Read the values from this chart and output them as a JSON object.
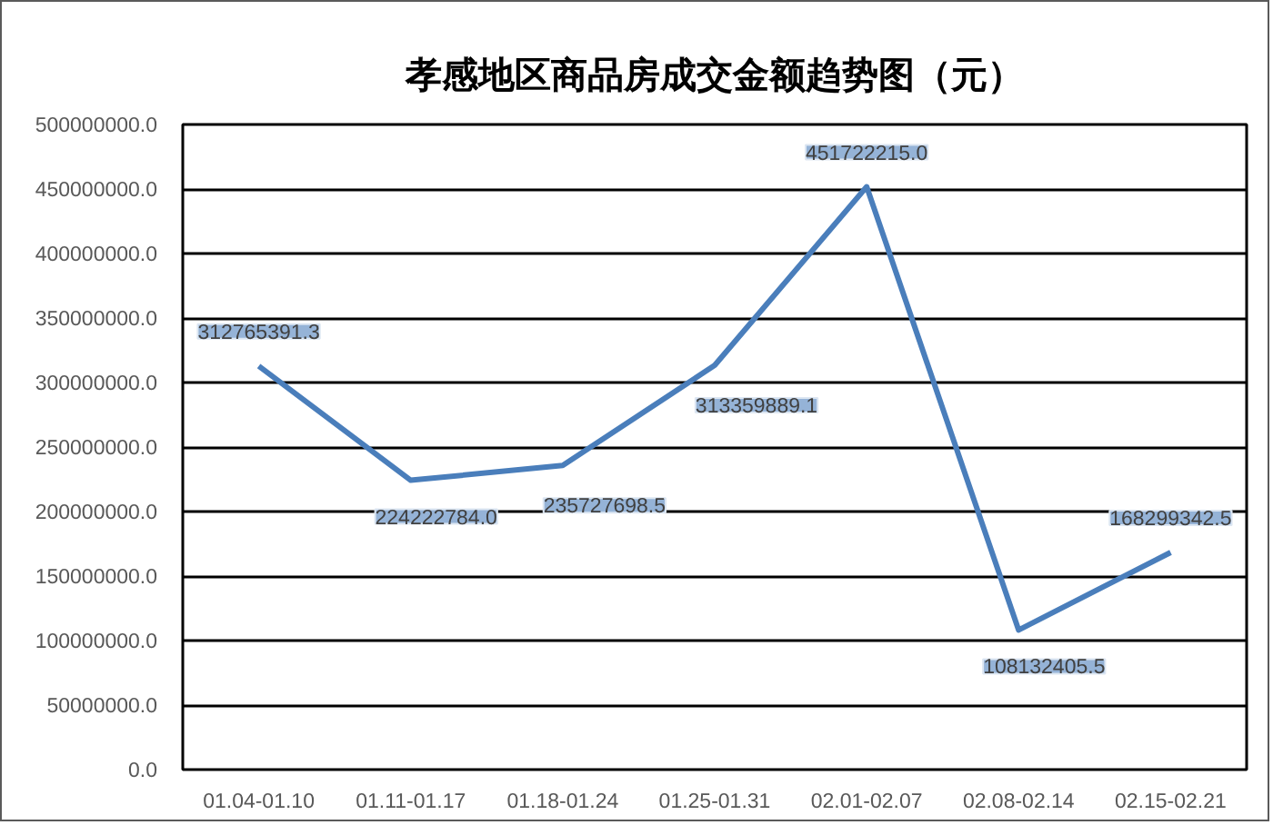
{
  "chart_data": {
    "type": "line",
    "title": "孝感地区商品房成交金额趋势图（元）",
    "categories": [
      "01.04-01.10",
      "01.11-01.17",
      "01.18-01.24",
      "01.25-01.31",
      "02.01-02.07",
      "02.08-02.14",
      "02.15-02.21"
    ],
    "values": [
      312765391.3,
      224222784.0,
      235727698.5,
      313359889.1,
      451722215.0,
      108132405.5,
      168299342.5
    ],
    "value_labels": [
      "312765391.3",
      "224222784.0",
      "235727698.5",
      "313359889.1",
      "451722215.0",
      "108132405.5",
      "168299342.5"
    ],
    "color": "#4a7ebb",
    "line_style": "solid",
    "grid": "y",
    "ylim": [
      0,
      500000000
    ],
    "yticks": [
      {
        "value": 0,
        "label": "0.0"
      },
      {
        "value": 50000000,
        "label": "50000000.0"
      },
      {
        "value": 100000000,
        "label": "100000000.0"
      },
      {
        "value": 150000000,
        "label": "150000000.0"
      },
      {
        "value": 200000000,
        "label": "200000000.0"
      },
      {
        "value": 250000000,
        "label": "250000000.0"
      },
      {
        "value": 300000000,
        "label": "300000000.0"
      },
      {
        "value": 350000000,
        "label": "350000000.0"
      },
      {
        "value": 400000000,
        "label": "400000000.0"
      },
      {
        "value": 450000000,
        "label": "450000000.0"
      },
      {
        "value": 500000000,
        "label": "500000000.0"
      }
    ]
  }
}
